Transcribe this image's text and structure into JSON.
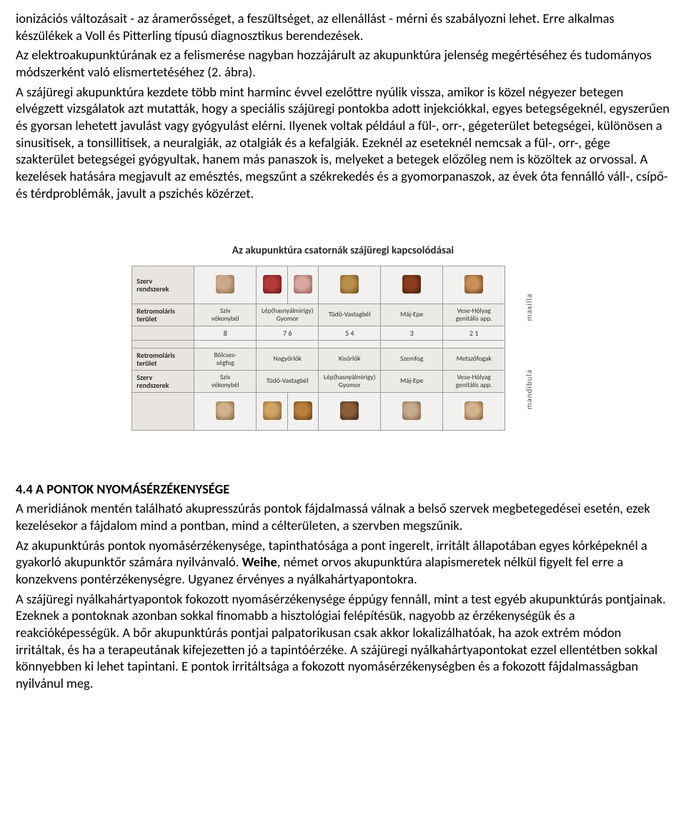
{
  "paragraphs": {
    "p1_a": "ionizációs változásait - az áramerősséget, a feszültséget, az ellenállást - mérni és szabályozni lehet. Erre alkalmas készülékek a Voll és Pitterling típusú diagnosztikus berendezések.",
    "p1_b": "Az elektroakupunktúrának ez a felismerése nagyban hozzájárult az akupunktúra jelenség megértéséhez és tudományos módszerként való elismertetéséhez (2. ábra).",
    "p1_c": "A szájüregi akupunktúra kezdete több mint harminc évvel ezelőttre nyúlik vissza, amikor is közel négyezer betegen elvégzett vizsgálatok azt mutatták, hogy a speciális szájüregi pontokba adott injekciókkal, egyes betegségeknél, egyszerűen és gyorsan lehetett javulást vagy gyógyulást elérni. Ilyenek voltak például a fül-, orr-, gégeterület betegségei, különösen a sinusitisek, a tonsillitisek, a neuralgiák, az otalgiák és a kefalgiák. Ezeknél az eseteknél nemcsak a fül-, orr-, gége szakterület betegségei gyógyultak, hanem más panaszok is, melyeket a betegek előzőleg nem is közöltek az orvossal. A kezelések hatására megjavult az emésztés, megszűnt a székrekedés és a gyomorpanaszok, az évek óta fennálló váll-, csípő- és térdproblémák, javult a pszichés közérzet."
  },
  "figure": {
    "title": "Az akupunktúra csatornák szájüregi kapcsolódásai",
    "side_top": "maxilla",
    "side_bottom": "mandibula",
    "row_headers": {
      "szerv": "Szerv\nrendszerek",
      "retro": "Retromoláris\nterület",
      "bolcs": "Bölcses-\nségfog",
      "nagy": "Nagyőrlők",
      "kis": "Kisőrlők",
      "szem": "Szemfog",
      "met": "Metszőfogak"
    },
    "top_labels": [
      "Szív\nvékonybél",
      "Lép(hasnyálmirigy)\nGyomor",
      "Tüdő-Vastagbél",
      "Máj-Epe",
      "Vese-Hólyag\ngenitális app."
    ],
    "bottom_labels": [
      "Szív\nvékonybél",
      "Tüdő-Vastagbél",
      "Lép(hasnyálmirigy)\nGyomor",
      "Máj-Epe",
      "Vese-Hólyag\ngenitális app."
    ],
    "numbers": [
      "8",
      "7  6",
      "5  4",
      "3",
      "2  1"
    ]
  },
  "section2": {
    "title": "4.4 A PONTOK NYOMÁSÉRZÉKENYSÉGE",
    "p_a": "A meridiánok mentén található akupresszúrás pontok fájdalmassá válnak a belső szervek megbetegedései esetén, ezek kezelésekor a fájdalom mind a pontban, mind a célterületen, a szervben megszűnik.",
    "p_b1": "Az akupunktúrás pontok nyomásérzékenysége, tapinthatósága a pont ingerelt, irritált állapotában egyes kórképeknél a gyakorló akupunktőr számára nyilvánvaló. ",
    "p_b_bold": "Weihe",
    "p_b2": ", német orvos akupunktúra alapismeretek nélkül figyelt fel erre a konzekvens pontérzékenységre. Ugyanez érvényes a nyálkahártyapontokra.",
    "p_c": "A szájüregi nyálkahártyapontok fokozott nyomásérzékenysége éppúgy fennáll, mint a test egyéb akupunktúrás pontjainak. Ezeknek a pontoknak azonban sokkal finomabb a hisztológiai felépítésük, nagyobb az érzékenységük és a reakcióképességük. A bőr akupunktúrás pontjai palpatorikusan csak akkor lokalizálhatóak, ha azok extrém módon irritáltak, és ha a terapeutának kifejezetten jó a tapintóérzéke. A szájüregi nyálkahártyapontokat ezzel ellentétben sokkal könnyebben ki lehet tapintani. E pontok irritáltsága a fokozott nyomásérzékenységben és a fokozott fájdalmasságban nyilvánul meg."
  }
}
